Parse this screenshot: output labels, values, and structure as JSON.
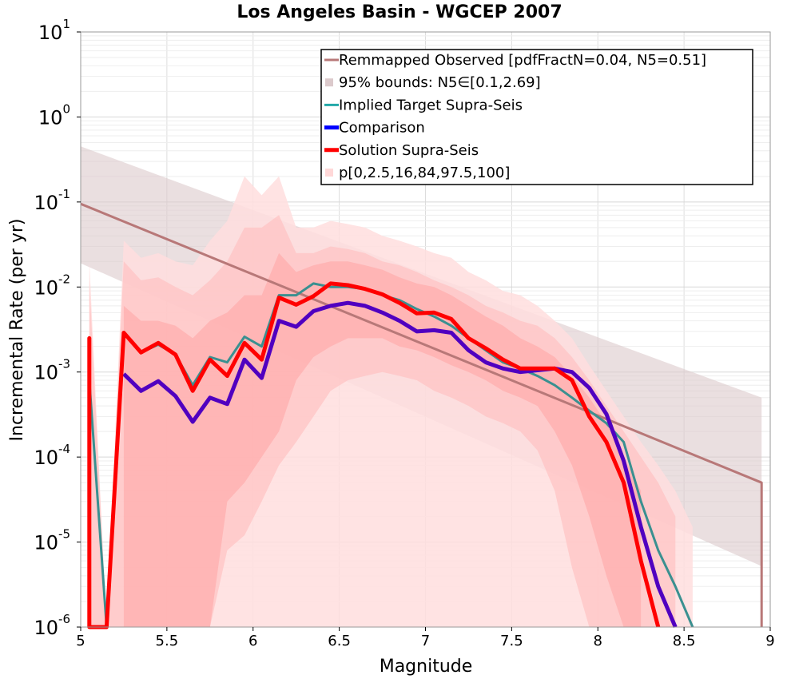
{
  "chart_data": {
    "type": "line",
    "title": "Los Angeles Basin - WGCEP 2007",
    "xlabel": "Magnitude",
    "ylabel": "Incremental Rate (per yr)",
    "xlim": [
      5,
      9
    ],
    "ylim": [
      1e-06,
      10
    ],
    "yscale": "log",
    "grid": true,
    "legend_position": "top-right",
    "x_ticks": [
      {
        "value": 5,
        "label": "5"
      },
      {
        "value": 5.5,
        "label": "5.5"
      },
      {
        "value": 6,
        "label": "6"
      },
      {
        "value": 6.5,
        "label": "6.5"
      },
      {
        "value": 7,
        "label": "7"
      },
      {
        "value": 7.5,
        "label": "7.5"
      },
      {
        "value": 8,
        "label": "8"
      },
      {
        "value": 8.5,
        "label": "8.5"
      },
      {
        "value": 9,
        "label": "9"
      }
    ],
    "y_ticks": [
      {
        "value": 1e-06,
        "base": "10",
        "exp": "-6"
      },
      {
        "value": 1e-05,
        "base": "10",
        "exp": "-5"
      },
      {
        "value": 0.0001,
        "base": "10",
        "exp": "-4"
      },
      {
        "value": 0.001,
        "base": "10",
        "exp": "-3"
      },
      {
        "value": 0.01,
        "base": "10",
        "exp": "-2"
      },
      {
        "value": 0.1,
        "base": "10",
        "exp": "-1"
      },
      {
        "value": 1,
        "base": "10",
        "exp": "0"
      },
      {
        "value": 10,
        "base": "10",
        "exp": "1"
      }
    ],
    "legend": [
      {
        "label": "Remmapped Observed [pdfFractN=0.04, N5=0.51]",
        "kind": "line",
        "color": "#b87878"
      },
      {
        "label": "95% bounds: N5∈[0.1,2.69]",
        "kind": "box",
        "color": "#dccacc"
      },
      {
        "label": "Implied Target Supra-Seis",
        "kind": "line",
        "color": "#22a8a8"
      },
      {
        "label": "Comparison",
        "kind": "line",
        "color": "#0000ff"
      },
      {
        "label": "Solution Supra-Seis",
        "kind": "line",
        "color": "#ff0000"
      },
      {
        "label": "p[0,2.5,16,84,97.5,100]",
        "kind": "box",
        "color": "#ffd8d8"
      }
    ],
    "colors": {
      "observed": "#b87878",
      "bounds": "#dccacc",
      "target": "#3a9090",
      "comparison": "#5000c0",
      "solution": "#ff0000",
      "p_outer": "#ffdede",
      "p_mid": "#ffc2c2",
      "p_inner": "#ffa4a4"
    },
    "series": {
      "observed": {
        "name": "Remmapped Observed [pdfFractN=0.04, N5=0.51]",
        "x": [
          5.0,
          8.95,
          8.95
        ],
        "y": [
          0.095,
          5e-05,
          1e-06
        ]
      },
      "bounds": {
        "name": "95% bounds: N5∈[0.1,2.69]",
        "x": [
          5.0,
          8.95
        ],
        "upper": [
          0.45,
          0.0005
        ],
        "lower": [
          0.019,
          5.2e-06
        ]
      },
      "p_outer": {
        "upper": {
          "x": [
            5.05,
            5.05,
            5.15,
            5.25,
            5.35,
            5.45,
            5.55,
            5.65,
            5.75,
            5.85,
            5.95,
            6.05,
            6.15,
            6.25,
            6.35,
            6.45,
            6.55,
            6.65,
            6.75,
            6.85,
            6.95,
            7.05,
            7.15,
            7.25,
            7.35,
            7.45,
            7.55,
            7.65,
            7.75,
            7.85,
            7.95,
            8.05,
            8.15,
            8.25,
            8.35,
            8.45,
            8.55
          ],
          "y": [
            1e-06,
            0.02,
            1e-06,
            0.035,
            0.022,
            0.025,
            0.02,
            0.018,
            0.035,
            0.06,
            0.2,
            0.12,
            0.2,
            0.05,
            0.05,
            0.06,
            0.055,
            0.05,
            0.04,
            0.035,
            0.03,
            0.025,
            0.022,
            0.015,
            0.012,
            0.009,
            0.008,
            0.006,
            0.004,
            0.0025,
            0.0012,
            0.0006,
            0.0003,
            0.00015,
            8e-05,
            4e-05,
            1.5e-05
          ]
        },
        "lower": {
          "x": [
            8.55,
            8.05,
            8.05,
            7.8,
            7.8,
            7.05,
            6.05,
            6.05,
            5.05
          ],
          "y": [
            1e-06,
            1e-06,
            1e-06,
            1e-06,
            1e-06,
            1e-06,
            1e-06,
            1e-06,
            1e-06
          ]
        }
      },
      "p_mid": {
        "x": [
          5.05,
          5.05,
          5.15,
          5.25,
          5.35,
          5.45,
          5.55,
          5.65,
          5.75,
          5.85,
          5.95,
          6.05,
          6.15,
          6.25,
          6.35,
          6.45,
          6.55,
          6.65,
          6.75,
          6.85,
          6.95,
          7.05,
          7.15,
          7.25,
          7.35,
          7.45,
          7.55,
          7.65,
          7.75,
          7.85,
          7.95,
          8.05,
          8.15,
          8.25,
          8.35,
          8.45
        ],
        "upper": [
          1e-06,
          0.012,
          1e-06,
          0.02,
          0.012,
          0.013,
          0.01,
          0.008,
          0.012,
          0.02,
          0.05,
          0.05,
          0.07,
          0.025,
          0.025,
          0.03,
          0.028,
          0.025,
          0.02,
          0.018,
          0.015,
          0.012,
          0.01,
          0.008,
          0.006,
          0.005,
          0.004,
          0.0035,
          0.0025,
          0.0015,
          0.0008,
          0.0004,
          0.0002,
          0.0001,
          5e-05,
          2e-05
        ],
        "lower": [
          1e-06,
          1e-06,
          1e-06,
          1e-06,
          1e-06,
          1e-06,
          1e-06,
          1e-06,
          1e-06,
          8e-06,
          1.2e-05,
          3e-05,
          8e-05,
          0.00015,
          0.0003,
          0.0006,
          0.0008,
          0.0009,
          0.001,
          0.0009,
          0.0008,
          0.0006,
          0.0005,
          0.0004,
          0.0003,
          0.00025,
          0.0002,
          0.00012,
          4e-05,
          5e-06,
          1e-06,
          1e-06,
          1e-06,
          1e-06,
          1e-06,
          1e-06
        ]
      },
      "p_inner": {
        "x": [
          5.25,
          5.35,
          5.45,
          5.55,
          5.65,
          5.75,
          5.85,
          5.95,
          6.05,
          6.15,
          6.25,
          6.35,
          6.45,
          6.55,
          6.65,
          6.75,
          6.85,
          6.95,
          7.05,
          7.15,
          7.25,
          7.35,
          7.45,
          7.55,
          7.65,
          7.75,
          7.85,
          7.95,
          8.05,
          8.15,
          8.25
        ],
        "upper": [
          0.006,
          0.004,
          0.004,
          0.0035,
          0.0025,
          0.004,
          0.005,
          0.008,
          0.008,
          0.025,
          0.015,
          0.018,
          0.02,
          0.02,
          0.018,
          0.016,
          0.013,
          0.011,
          0.01,
          0.008,
          0.006,
          0.0045,
          0.0035,
          0.0025,
          0.002,
          0.0015,
          0.0009,
          0.0005,
          0.00025,
          0.0001,
          4e-05
        ],
        "lower": [
          1e-06,
          1e-06,
          1e-06,
          1e-06,
          1e-06,
          1e-06,
          3e-05,
          5e-05,
          0.0001,
          0.0002,
          0.0008,
          0.0015,
          0.002,
          0.0025,
          0.0025,
          0.0025,
          0.002,
          0.0018,
          0.0015,
          0.0012,
          0.001,
          0.0008,
          0.0006,
          0.0005,
          0.0004,
          0.0002,
          8e-05,
          2e-05,
          4e-06,
          1e-06,
          1e-06
        ]
      },
      "target": {
        "name": "Implied Target Supra-Seis",
        "x": [
          5.05,
          5.05,
          5.15,
          5.25,
          5.35,
          5.45,
          5.55,
          5.65,
          5.75,
          5.85,
          5.95,
          6.05,
          6.15,
          6.25,
          6.35,
          6.45,
          6.55,
          6.65,
          6.75,
          6.85,
          6.95,
          7.05,
          7.15,
          7.25,
          7.35,
          7.45,
          7.55,
          7.65,
          7.75,
          7.85,
          7.95,
          8.05,
          8.15,
          8.25,
          8.35,
          8.45,
          8.55
        ],
        "y": [
          1e-06,
          0.0008,
          1e-06,
          0.0028,
          0.0017,
          0.0021,
          0.0016,
          0.0007,
          0.0015,
          0.0013,
          0.0026,
          0.002,
          0.008,
          0.008,
          0.011,
          0.01,
          0.01,
          0.0095,
          0.008,
          0.007,
          0.0055,
          0.0045,
          0.0035,
          0.0025,
          0.0018,
          0.0013,
          0.0011,
          0.0009,
          0.0007,
          0.0005,
          0.00035,
          0.00025,
          0.00015,
          3e-05,
          8e-06,
          3e-06,
          1e-06
        ]
      },
      "comparison": {
        "name": "Comparison",
        "x": [
          5.25,
          5.35,
          5.45,
          5.55,
          5.65,
          5.75,
          5.85,
          5.95,
          6.05,
          6.15,
          6.25,
          6.35,
          6.45,
          6.55,
          6.65,
          6.75,
          6.85,
          6.95,
          7.05,
          7.15,
          7.25,
          7.35,
          7.45,
          7.55,
          7.65,
          7.75,
          7.85,
          7.95,
          8.05,
          8.15,
          8.25,
          8.35,
          8.45
        ],
        "y": [
          0.00095,
          0.0006,
          0.00078,
          0.00052,
          0.00026,
          0.0005,
          0.00042,
          0.0014,
          0.00085,
          0.004,
          0.0034,
          0.0052,
          0.006,
          0.0065,
          0.006,
          0.005,
          0.004,
          0.003,
          0.0031,
          0.0029,
          0.0018,
          0.0013,
          0.0011,
          0.001,
          0.00105,
          0.0011,
          0.001,
          0.00065,
          0.00032,
          9e-05,
          1.5e-05,
          3e-06,
          1e-06
        ]
      },
      "solution": {
        "name": "Solution Supra-Seis",
        "x": [
          5.05,
          5.05,
          5.05,
          5.15,
          5.15,
          5.15,
          5.25,
          5.35,
          5.45,
          5.55,
          5.65,
          5.75,
          5.85,
          5.95,
          6.05,
          6.15,
          6.25,
          6.35,
          6.45,
          6.55,
          6.65,
          6.75,
          6.85,
          6.95,
          7.05,
          7.15,
          7.25,
          7.35,
          7.45,
          7.55,
          7.65,
          7.75,
          7.85,
          7.95,
          8.05,
          8.15,
          8.25,
          8.35
        ],
        "y": [
          1e-06,
          0.0025,
          1e-06,
          1e-06,
          1e-06,
          1e-06,
          0.0029,
          0.0017,
          0.0022,
          0.0016,
          0.0006,
          0.0014,
          0.0009,
          0.0022,
          0.0014,
          0.0075,
          0.0062,
          0.0078,
          0.011,
          0.0105,
          0.0095,
          0.0082,
          0.0065,
          0.0049,
          0.005,
          0.0042,
          0.0025,
          0.0019,
          0.0014,
          0.0011,
          0.0011,
          0.0011,
          0.0008,
          0.0003,
          0.00015,
          5e-05,
          6e-06,
          1e-06
        ]
      }
    }
  }
}
